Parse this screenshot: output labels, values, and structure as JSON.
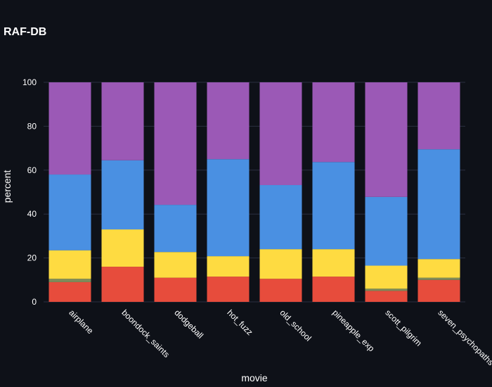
{
  "chart_data": {
    "type": "bar",
    "stacked": true,
    "title": "RAF-DB",
    "xlabel": "movie",
    "ylabel": "percent",
    "ylim": [
      0,
      100
    ],
    "yticks": [
      0,
      20,
      40,
      60,
      80,
      100
    ],
    "grid": true,
    "legend": "none",
    "categories": [
      "airplane",
      "boondock_saints",
      "dodgeball",
      "hot_fuzz",
      "old_school",
      "pineapple_exp",
      "scott_pilgrim",
      "seven_psychopaths"
    ],
    "series": [
      {
        "name": "red",
        "color": "#e74c3c",
        "values": [
          9.0,
          16.0,
          11.0,
          11.5,
          10.5,
          11.5,
          5.0,
          10.0
        ]
      },
      {
        "name": "olive",
        "color": "#7f8c5a",
        "values": [
          1.5,
          0.0,
          0.0,
          0.0,
          0.0,
          0.0,
          1.0,
          1.0
        ]
      },
      {
        "name": "yellow",
        "color": "#fedb41",
        "values": [
          13.0,
          17.0,
          11.7,
          9.3,
          13.5,
          12.5,
          10.5,
          8.5
        ]
      },
      {
        "name": "blue",
        "color": "#4a90e2",
        "values": [
          34.5,
          31.5,
          21.5,
          44.2,
          29.2,
          39.7,
          31.3,
          50.0
        ]
      },
      {
        "name": "purple",
        "color": "#9b59b6",
        "values": [
          42.0,
          35.5,
          55.8,
          35.0,
          46.8,
          36.3,
          52.2,
          30.5
        ]
      }
    ]
  }
}
